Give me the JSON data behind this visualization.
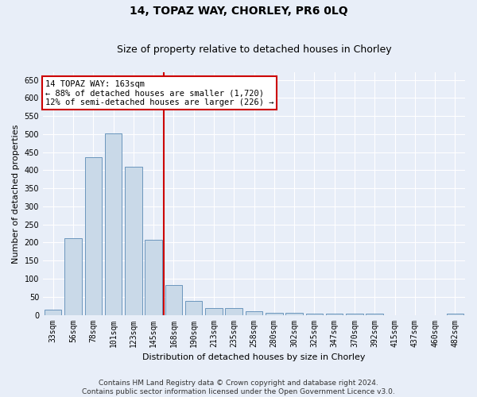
{
  "title": "14, TOPAZ WAY, CHORLEY, PR6 0LQ",
  "subtitle": "Size of property relative to detached houses in Chorley",
  "xlabel": "Distribution of detached houses by size in Chorley",
  "ylabel": "Number of detached properties",
  "categories": [
    "33sqm",
    "56sqm",
    "78sqm",
    "101sqm",
    "123sqm",
    "145sqm",
    "168sqm",
    "190sqm",
    "213sqm",
    "235sqm",
    "258sqm",
    "280sqm",
    "302sqm",
    "325sqm",
    "347sqm",
    "370sqm",
    "392sqm",
    "415sqm",
    "437sqm",
    "460sqm",
    "482sqm"
  ],
  "values": [
    15,
    212,
    435,
    503,
    410,
    207,
    83,
    38,
    18,
    18,
    10,
    5,
    5,
    3,
    3,
    3,
    3,
    0,
    0,
    0,
    4
  ],
  "bar_color": "#c9d9e8",
  "bar_edge_color": "#5a8ab5",
  "vline_x_index": 5.5,
  "vline_color": "#cc0000",
  "annotation_text": "14 TOPAZ WAY: 163sqm\n← 88% of detached houses are smaller (1,720)\n12% of semi-detached houses are larger (226) →",
  "annotation_box_color": "#ffffff",
  "annotation_box_edge_color": "#cc0000",
  "ylim": [
    0,
    670
  ],
  "yticks": [
    0,
    50,
    100,
    150,
    200,
    250,
    300,
    350,
    400,
    450,
    500,
    550,
    600,
    650
  ],
  "footer": "Contains HM Land Registry data © Crown copyright and database right 2024.\nContains public sector information licensed under the Open Government Licence v3.0.",
  "bg_color": "#e8eef8",
  "plot_bg_color": "#e8eef8",
  "grid_color": "#ffffff",
  "title_fontsize": 10,
  "subtitle_fontsize": 9,
  "axis_label_fontsize": 8,
  "tick_fontsize": 7,
  "footer_fontsize": 6.5,
  "annotation_fontsize": 7.5
}
